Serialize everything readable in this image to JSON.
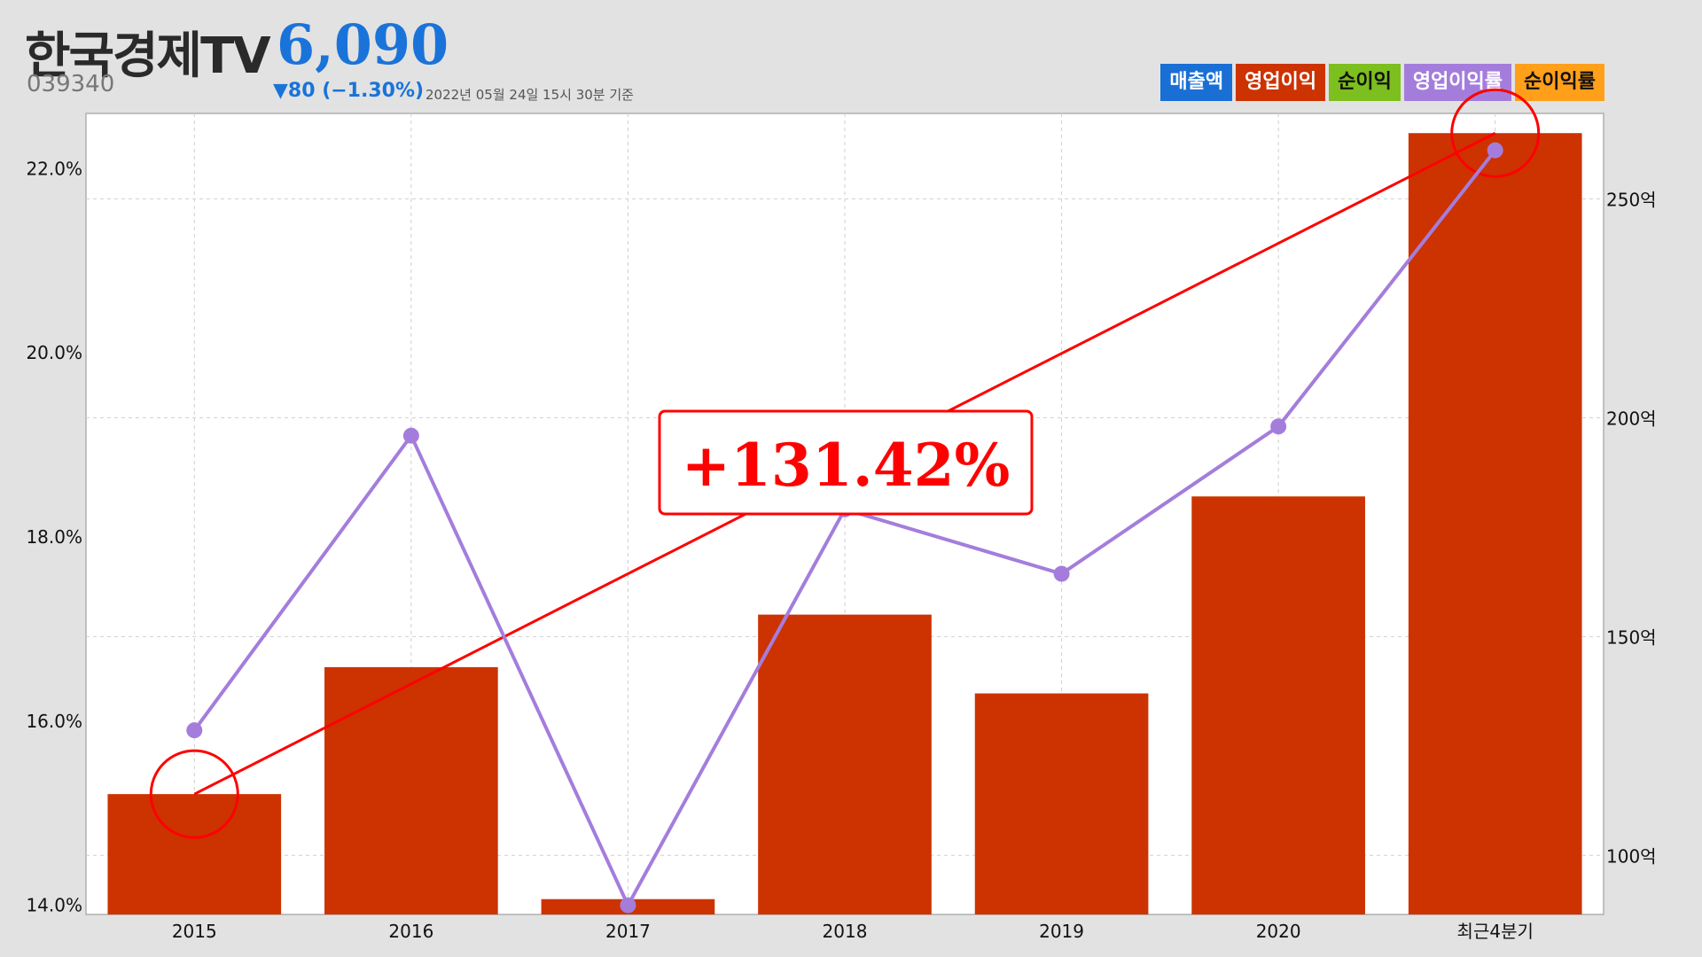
{
  "header": {
    "company": "한국경제TV",
    "ticker": "039340",
    "price": "6,090",
    "change": "▼80 (−1.30%)",
    "timestamp": "2022년 05월 24일 15시 30분 기준"
  },
  "legend": [
    {
      "label": "매출액",
      "color": "#1a6fd4",
      "dark": false
    },
    {
      "label": "영업이익",
      "color": "#cc3300",
      "dark": false
    },
    {
      "label": "순이익",
      "color": "#7cbf1e",
      "dark": true
    },
    {
      "label": "영업이익률",
      "color": "#a47ddc",
      "dark": false
    },
    {
      "label": "순이익률",
      "color": "#ff9f1a",
      "dark": true
    }
  ],
  "annotation": {
    "text": "+131.42%",
    "color": "#ff0000"
  },
  "chart_data": {
    "type": "bar",
    "categories": [
      "2015",
      "2016",
      "2017",
      "2018",
      "2019",
      "2020",
      "최근4분기"
    ],
    "series": [
      {
        "name": "영업이익",
        "type": "bar",
        "axis": "right",
        "color": "#cc3300",
        "values": [
          114,
          143,
          90,
          155,
          137,
          182,
          265
        ]
      },
      {
        "name": "영업이익률",
        "type": "line",
        "axis": "left",
        "color": "#a47ddc",
        "values": [
          15.9,
          19.1,
          14.0,
          18.3,
          17.6,
          19.2,
          22.2
        ]
      }
    ],
    "y_left": {
      "min": 13.9,
      "max": 22.6,
      "ticks": [
        14,
        16,
        18,
        20,
        22
      ],
      "tick_labels": [
        "14.0%",
        "16.0%",
        "18.0%",
        "20.0%",
        "22.0%"
      ]
    },
    "y_right": {
      "min": 86.5,
      "max": 269.5,
      "ticks": [
        100,
        150,
        200,
        250
      ],
      "tick_labels": [
        "100억",
        "150억",
        "200억",
        "250억"
      ]
    },
    "grid": true,
    "trend": {
      "from_index": 0,
      "to_index": 6,
      "color": "#ff0000",
      "label": "+131.42%"
    }
  }
}
